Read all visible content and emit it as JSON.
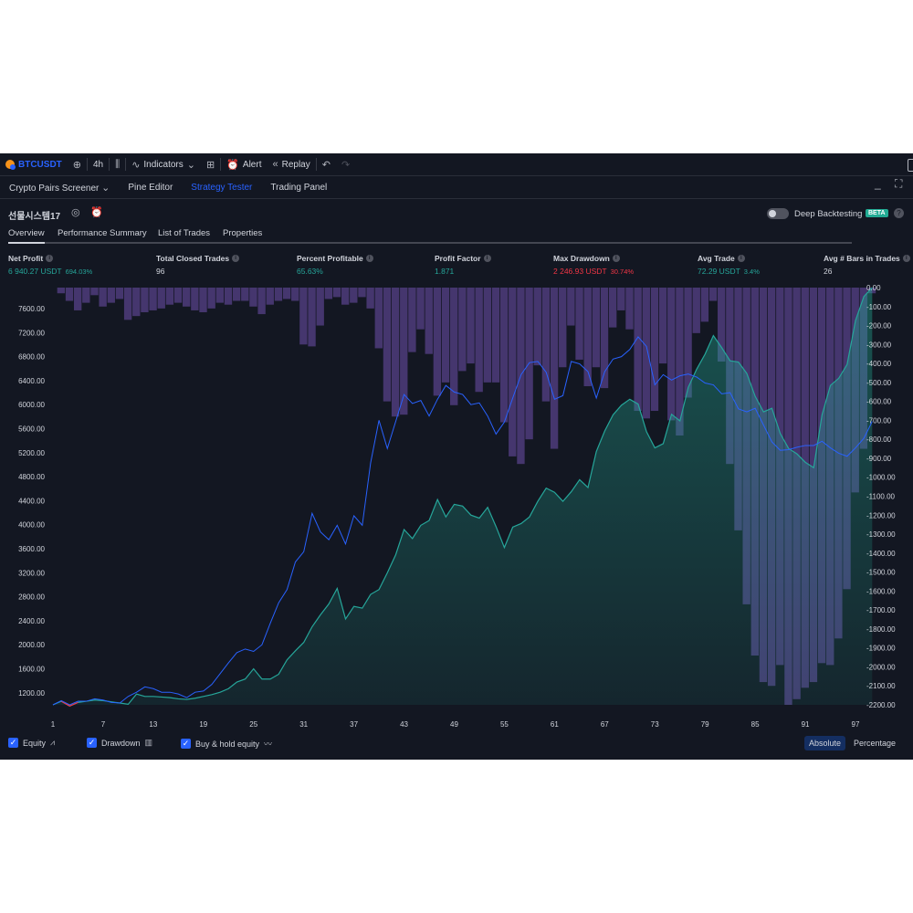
{
  "toolbar": {
    "symbol": "BTCUSDT",
    "interval": "4h",
    "indicators": "Indicators",
    "alert": "Alert",
    "replay": "Replay"
  },
  "panel_tabs": [
    "Crypto Pairs Screener",
    "Pine Editor",
    "Strategy Tester",
    "Trading Panel"
  ],
  "strategy": {
    "name": "선물시스템17",
    "deep_backtesting": "Deep Backtesting",
    "beta": "BETA",
    "help": "?"
  },
  "subtabs": [
    "Overview",
    "Performance Summary",
    "List of Trades",
    "Properties"
  ],
  "metrics": {
    "net_profit": {
      "label": "Net Profit",
      "value": "6 940.27 USDT",
      "sub": "694.03%"
    },
    "total_closed_trades": {
      "label": "Total Closed Trades",
      "value": "96"
    },
    "percent_profitable": {
      "label": "Percent Profitable",
      "value": "65.63%"
    },
    "profit_factor": {
      "label": "Profit Factor",
      "value": "1.871"
    },
    "max_drawdown": {
      "label": "Max Drawdown",
      "value": "2 246.93 USDT",
      "sub": "30.74%"
    },
    "avg_trade": {
      "label": "Avg Trade",
      "value": "72.29 USDT",
      "sub": "3.4%"
    },
    "avg_bars": {
      "label": "Avg # Bars in Trades",
      "value": "26"
    }
  },
  "chart_data": {
    "type": "line",
    "x_ticks": [
      "1",
      "7",
      "13",
      "19",
      "25",
      "31",
      "37",
      "43",
      "49",
      "55",
      "61",
      "67",
      "73",
      "79",
      "85",
      "91",
      "97"
    ],
    "y_left_ticks": [
      "7600.00",
      "7200.00",
      "6800.00",
      "6400.00",
      "6000.00",
      "5600.00",
      "5200.00",
      "4800.00",
      "4400.00",
      "4000.00",
      "3600.00",
      "3200.00",
      "2800.00",
      "2400.00",
      "2000.00",
      "1600.00",
      "1200.00"
    ],
    "y_right_ticks": [
      "0.00",
      "-100.00",
      "-200.00",
      "-300.00",
      "-400.00",
      "-500.00",
      "-600.00",
      "-700.00",
      "-800.00",
      "-900.00",
      "-1000.00",
      "-1100.00",
      "-1200.00",
      "-1300.00",
      "-1400.00",
      "-1500.00",
      "-1600.00",
      "-1700.00",
      "-1800.00",
      "-1900.00",
      "-2000.00",
      "-2100.00",
      "-2200.00"
    ],
    "x_range": [
      1,
      97
    ],
    "y_left_range": [
      1000,
      7950
    ],
    "y_right_range": [
      -2200,
      0
    ],
    "colors": {
      "equity": "#26a69a",
      "drawdown": "#7e57c2",
      "buy_hold": "#2962ff",
      "negative": "#f23645"
    },
    "series": [
      {
        "name": "Equity",
        "values": [
          1000,
          1060,
          980,
          1040,
          1060,
          1080,
          1070,
          1050,
          1030,
          1010,
          1180,
          1140,
          1140,
          1130,
          1120,
          1100,
          1090,
          1110,
          1140,
          1170,
          1210,
          1270,
          1380,
          1430,
          1600,
          1430,
          1430,
          1510,
          1750,
          1900,
          2040,
          2300,
          2500,
          2680,
          2940,
          2430,
          2640,
          2610,
          2840,
          2920,
          3200,
          3500,
          3920,
          3770,
          3990,
          4070,
          4420,
          4130,
          4340,
          4310,
          4160,
          4110,
          4290,
          3970,
          3620,
          3960,
          4020,
          4130,
          4390,
          4610,
          4540,
          4390,
          4550,
          4750,
          4620,
          5220,
          5560,
          5830,
          5990,
          6090,
          6010,
          5550,
          5280,
          5350,
          5840,
          5730,
          6290,
          6590,
          6840,
          7150,
          6950,
          6730,
          6710,
          6520,
          6140,
          5880,
          5940,
          5520,
          5270,
          5180,
          5040,
          4950,
          5830,
          6320,
          6440,
          6670,
          7400,
          7800,
          7950
        ]
      },
      {
        "name": "Drawdown",
        "values": [
          0,
          -30,
          -70,
          -120,
          -80,
          -40,
          -100,
          -80,
          -60,
          -170,
          -150,
          -130,
          -120,
          -110,
          -90,
          -80,
          -100,
          -120,
          -130,
          -110,
          -80,
          -90,
          -70,
          -70,
          -100,
          -140,
          -90,
          -70,
          -60,
          -70,
          -300,
          -310,
          -200,
          -60,
          -50,
          -90,
          -80,
          -50,
          -110,
          -320,
          -600,
          -680,
          -670,
          -340,
          -220,
          -350,
          -570,
          -500,
          -620,
          -440,
          -400,
          -550,
          -500,
          -500,
          -710,
          -890,
          -930,
          -800,
          -410,
          -600,
          -850,
          -420,
          -200,
          -380,
          -520,
          -420,
          -530,
          -210,
          -120,
          -220,
          -650,
          -690,
          -650,
          -400,
          -700,
          -780,
          -580,
          -240,
          -180,
          -70,
          -390,
          -930,
          -1280,
          -1670,
          -1940,
          -2080,
          -2100,
          -1990,
          -2200,
          -2170,
          -2110,
          -2080,
          -1980,
          -1990,
          -1850,
          -1590,
          -1080,
          -850,
          -30
        ]
      },
      {
        "name": "Buy & hold equity",
        "values": [
          1000,
          1070,
          1000,
          1060,
          1060,
          1100,
          1080,
          1040,
          1030,
          1140,
          1210,
          1300,
          1270,
          1210,
          1210,
          1180,
          1120,
          1210,
          1230,
          1340,
          1520,
          1700,
          1870,
          1930,
          1890,
          2000,
          2360,
          2700,
          2920,
          3380,
          3550,
          4190,
          3880,
          3750,
          3990,
          3680,
          4150,
          3990,
          5030,
          5740,
          5270,
          5720,
          6170,
          6020,
          6070,
          5810,
          6090,
          6320,
          6210,
          6170,
          6000,
          6030,
          5810,
          5510,
          5710,
          6110,
          6500,
          6700,
          6720,
          6540,
          6090,
          6150,
          6720,
          6680,
          6550,
          6110,
          6550,
          6760,
          6800,
          6920,
          7130,
          6970,
          6330,
          6500,
          6410,
          6480,
          6510,
          6460,
          6360,
          6330,
          6180,
          6200,
          5930,
          5880,
          5940,
          5660,
          5380,
          5240,
          5250,
          5290,
          5320,
          5320,
          5390,
          5280,
          5190,
          5140,
          5280,
          5440,
          5720
        ]
      }
    ]
  },
  "legend": {
    "equity": "Equity",
    "drawdown": "Drawdown",
    "buy_hold": "Buy & hold equity",
    "absolute": "Absolute",
    "percentage": "Percentage"
  }
}
